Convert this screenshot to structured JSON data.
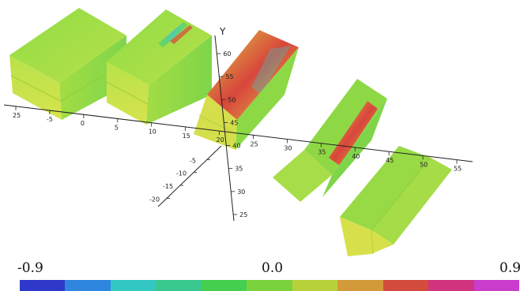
{
  "axes": {
    "y_label": "Y",
    "x_ticks": [
      "25",
      "-5",
      "0",
      "5",
      "10",
      "15",
      "20",
      "25",
      "30",
      "35",
      "40",
      "45",
      "50",
      "55"
    ],
    "z_ticks": [
      "-5",
      "-10",
      "-15",
      "-20"
    ],
    "y_ticks": [
      "60",
      "55",
      "50",
      "45",
      "40",
      "35",
      "30",
      "25"
    ]
  },
  "colorbar": {
    "min_label": "-0.9",
    "mid_label": "0.0",
    "max_label": "0.9",
    "colors": [
      "#2f39c9",
      "#2f86de",
      "#33c7c4",
      "#39c98f",
      "#45cf4e",
      "#7ad13c",
      "#b7d13a",
      "#d39a3a",
      "#d24b3c",
      "#d2337e",
      "#c93ccc"
    ]
  },
  "colors": {
    "body_green": "#7fd94a",
    "body_yellow": "#d8e04a",
    "hot_red": "#d8463c",
    "cool_cyan": "#40c8c0"
  }
}
